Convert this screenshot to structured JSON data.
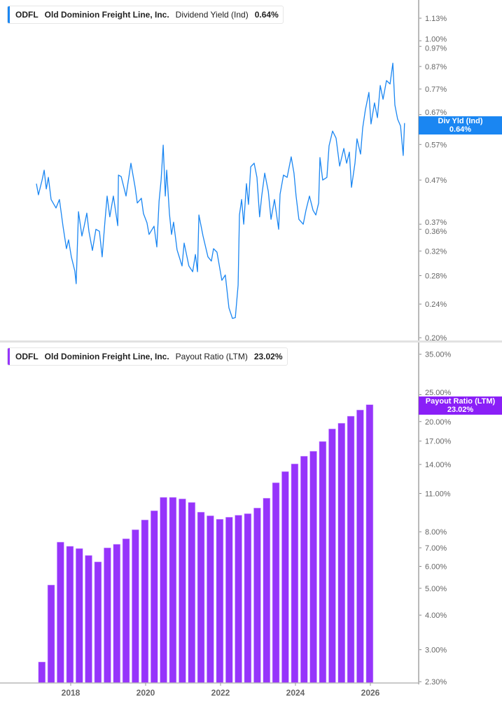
{
  "colors": {
    "yield_line": "#1a86f2",
    "payout_bars": "#9634fb",
    "axis": "#b9b9b9",
    "tick_text": "#666666"
  },
  "chart_data": [
    {
      "type": "line",
      "legend": {
        "ticker": "ODFL",
        "company": "Old Dominion Freight Line, Inc.",
        "metric": "Dividend Yield (Ind)",
        "value": "0.64%"
      },
      "tag": {
        "label": "Div Yld (Ind)",
        "value": "0.64%"
      },
      "yscale": "log",
      "ylim": [
        0.2,
        1.13
      ],
      "yticks": [
        "1.13%",
        "1.00%",
        "0.97%",
        "0.87%",
        "0.77%",
        "0.67%",
        "0.57%",
        "0.47%",
        "0.37%",
        "0.36%",
        "0.32%",
        "0.28%",
        "0.24%",
        "0.20%"
      ],
      "ytick_values": [
        1.13,
        1.0,
        0.97,
        0.87,
        0.77,
        0.67,
        0.57,
        0.47,
        0.37,
        0.36,
        0.32,
        0.28,
        0.24,
        0.2
      ],
      "grid": false,
      "series": [
        {
          "x": [
            "2017-02-01",
            "2017-02-21",
            "2017-03-26",
            "2017-04-16",
            "2017-05-06",
            "2017-05-27",
            "2017-06-23",
            "2017-08-10",
            "2017-09-13",
            "2017-10-17",
            "2017-11-20",
            "2017-12-10",
            "2018-01-07",
            "2018-02-11",
            "2018-02-24",
            "2018-03-16",
            "2018-04-19",
            "2018-05-10",
            "2018-06-06",
            "2018-06-26",
            "2018-07-30",
            "2018-09-03",
            "2018-10-07",
            "2018-11-03",
            "2018-11-30",
            "2018-12-21",
            "2019-01-17",
            "2019-02-21",
            "2019-04-03",
            "2019-04-10",
            "2019-05-06",
            "2019-06-23",
            "2019-08-10",
            "2019-09-20",
            "2019-10-11",
            "2019-11-20",
            "2019-12-10",
            "2020-01-14",
            "2020-02-04",
            "2020-03-22",
            "2020-04-19",
            "2020-05-10",
            "2020-05-30",
            "2020-06-20",
            "2020-07-10",
            "2020-07-24",
            "2020-08-20",
            "2020-09-10",
            "2020-09-30",
            "2020-11-03",
            "2020-12-21",
            "2021-01-11",
            "2021-02-27",
            "2021-04-03",
            "2021-04-30",
            "2021-05-20",
            "2021-06-03",
            "2021-07-13",
            "2021-08-30",
            "2021-10-03",
            "2021-10-24",
            "2021-11-27",
            "2022-01-14",
            "2022-02-17",
            "2022-03-22",
            "2022-04-26",
            "2022-05-23",
            "2022-06-20",
            "2022-07-03",
            "2022-07-24",
            "2022-08-14",
            "2022-09-10",
            "2022-09-30",
            "2022-10-21",
            "2022-11-24",
            "2022-12-21",
            "2023-01-17",
            "2023-02-07",
            "2023-03-06",
            "2023-04-10",
            "2023-05-06",
            "2023-06-09",
            "2023-07-20",
            "2023-08-03",
            "2023-09-06",
            "2023-10-11",
            "2023-11-20",
            "2023-12-17",
            "2024-01-07",
            "2024-02-04",
            "2024-03-16",
            "2024-04-12",
            "2024-05-16",
            "2024-06-20",
            "2024-07-17",
            "2024-08-14",
            "2024-08-27",
            "2024-09-23",
            "2024-11-03",
            "2024-11-24",
            "2024-12-28",
            "2025-02-01",
            "2025-03-06",
            "2025-04-16",
            "2025-05-13",
            "2025-06-09",
            "2025-06-30",
            "2025-08-03",
            "2025-08-23",
            "2025-09-27",
            "2025-10-17",
            "2025-11-13",
            "2025-12-17",
            "2026-01-07",
            "2026-02-11",
            "2026-03-09",
            "2026-04-06",
            "2026-05-03",
            "2026-06-06",
            "2026-07-10",
            "2026-08-07",
            "2026-08-27",
            "2026-09-23",
            "2026-10-21",
            "2026-11-17",
            "2026-11-30"
          ],
          "y": [
            0.461,
            0.434,
            0.47,
            0.496,
            0.448,
            0.477,
            0.423,
            0.404,
            0.423,
            0.366,
            0.324,
            0.34,
            0.31,
            0.287,
            0.268,
            0.396,
            0.347,
            0.366,
            0.393,
            0.356,
            0.321,
            0.36,
            0.356,
            0.31,
            0.374,
            0.431,
            0.385,
            0.431,
            0.367,
            0.483,
            0.479,
            0.431,
            0.515,
            0.452,
            0.415,
            0.426,
            0.392,
            0.373,
            0.35,
            0.366,
            0.327,
            0.419,
            0.47,
            0.568,
            0.431,
            0.496,
            0.392,
            0.35,
            0.374,
            0.322,
            0.295,
            0.334,
            0.295,
            0.286,
            0.314,
            0.286,
            0.389,
            0.347,
            0.31,
            0.303,
            0.324,
            0.318,
            0.273,
            0.281,
            0.235,
            0.222,
            0.223,
            0.266,
            0.389,
            0.423,
            0.37,
            0.461,
            0.412,
            0.505,
            0.515,
            0.477,
            0.385,
            0.431,
            0.488,
            0.442,
            0.38,
            0.423,
            0.36,
            0.435,
            0.483,
            0.477,
            0.533,
            0.488,
            0.431,
            0.38,
            0.37,
            0.399,
            0.431,
            0.399,
            0.389,
            0.415,
            0.531,
            0.47,
            0.477,
            0.566,
            0.613,
            0.59,
            0.507,
            0.558,
            0.515,
            0.547,
            0.452,
            0.515,
            0.588,
            0.541,
            0.623,
            0.687,
            0.756,
            0.637,
            0.714,
            0.659,
            0.785,
            0.728,
            0.806,
            0.791,
            0.886,
            0.706,
            0.654,
            0.63,
            0.537,
            0.64
          ]
        }
      ]
    },
    {
      "type": "bar",
      "legend": {
        "ticker": "ODFL",
        "company": "Old Dominion Freight Line, Inc.",
        "metric": "Payout Ratio (LTM)",
        "value": "23.02%"
      },
      "tag": {
        "label": "Payout Ratio (LTM)",
        "value": "23.02%"
      },
      "yscale": "log",
      "ylim": [
        2.3,
        35
      ],
      "yticks": [
        "35.00%",
        "25.00%",
        "20.00%",
        "17.00%",
        "14.00%",
        "11.00%",
        "8.00%",
        "7.00%",
        "6.00%",
        "5.00%",
        "4.00%",
        "3.00%",
        "2.30%"
      ],
      "ytick_values": [
        35,
        25,
        20,
        17,
        14,
        11,
        8,
        7,
        6,
        5,
        4,
        3,
        2.3
      ],
      "xticks": [
        "2018",
        "2020",
        "2022",
        "2024",
        "2026"
      ],
      "grid": false,
      "x": [
        "2017-03-31",
        "2017-06-30",
        "2017-09-30",
        "2017-12-31",
        "2018-03-31",
        "2018-06-30",
        "2018-09-30",
        "2018-12-31",
        "2019-03-31",
        "2019-06-30",
        "2019-09-30",
        "2019-12-31",
        "2020-03-31",
        "2020-06-30",
        "2020-09-30",
        "2020-12-31",
        "2021-03-31",
        "2021-06-30",
        "2021-09-30",
        "2021-12-31",
        "2022-03-31",
        "2022-06-30",
        "2022-09-30",
        "2022-12-31",
        "2023-03-31",
        "2023-06-30",
        "2023-09-30",
        "2023-12-31",
        "2024-03-31",
        "2024-06-30",
        "2024-09-30",
        "2024-12-31",
        "2025-03-31",
        "2025-06-30",
        "2025-09-30",
        "2025-12-31"
      ],
      "values": [
        2.71,
        5.14,
        7.34,
        7.09,
        6.96,
        6.57,
        6.23,
        7.0,
        7.21,
        7.55,
        8.14,
        8.83,
        9.53,
        10.65,
        10.65,
        10.52,
        10.21,
        9.42,
        9.14,
        8.88,
        9.03,
        9.18,
        9.3,
        9.75,
        10.58,
        12.03,
        13.2,
        14.07,
        15.0,
        15.63,
        16.95,
        18.82,
        19.73,
        20.92,
        22.02,
        23.02
      ]
    }
  ]
}
